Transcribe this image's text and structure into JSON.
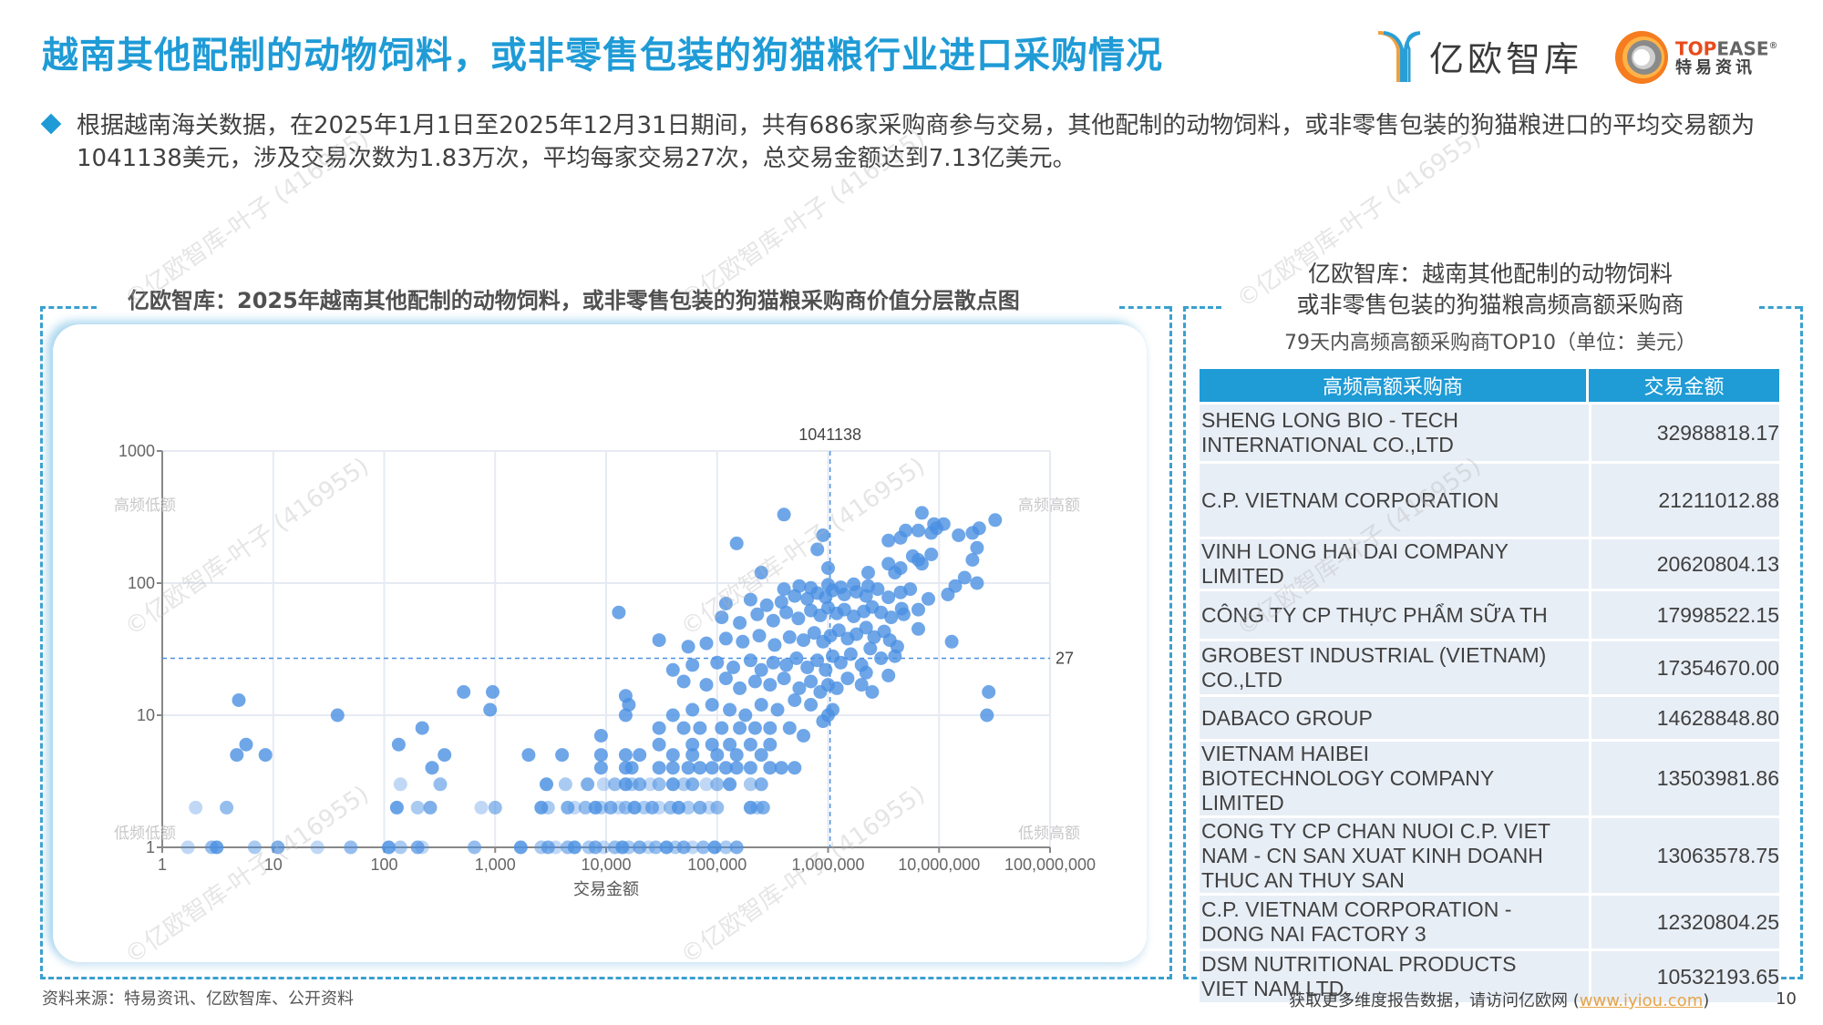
{
  "header": {
    "title": "越南其他配制的动物饲料，或非零售包装的狗猫粮行业进口采购情况",
    "logo_yiou": "亿欧智库",
    "logo_topease_brand_a": "TOP",
    "logo_topease_brand_b": "EASE",
    "logo_topease_reg": "®",
    "logo_topease_sub": "特易资讯"
  },
  "summary": {
    "text": "根据越南海关数据，在2025年1月1日至2025年12月31日期间，共有686家采购商参与交易，其他配制的动物饲料，或非零售包装的狗猫粮进口的平均交易额为1041138美元，涉及交易次数为1.83万次，平均每家交易27次，总交易金额达到7.13亿美元。"
  },
  "left_panel": {
    "title": "亿欧智库：2025年越南其他配制的动物饲料，或非零售包装的狗猫粮采购商价值分层散点图"
  },
  "right_panel": {
    "title_line1": "亿欧智库：越南其他配制的动物饲料",
    "title_line2": "或非零售包装的狗猫粮高频高额采购商",
    "subtitle": "79天内高频高额采购商TOP10（单位：美元）",
    "columns": [
      "高频高额采购商",
      "交易金额"
    ],
    "rows": [
      {
        "name": "SHENG LONG BIO - TECH INTERNATIONAL CO.,LTD",
        "amount": "32988818.17"
      },
      {
        "name": "C.P. VIETNAM CORPORATION",
        "amount": "21211012.88"
      },
      {
        "name": "VINH LONG HAI DAI COMPANY LIMITED",
        "amount": "20620804.13"
      },
      {
        "name": "CÔNG TY CP THỰC PHẨM SỮA TH",
        "amount": "17998522.15"
      },
      {
        "name": "GROBEST INDUSTRIAL (VIETNAM) CO.,LTD",
        "amount": "17354670.00"
      },
      {
        "name": "DABACO GROUP",
        "amount": "14628848.80"
      },
      {
        "name": "VIETNAM HAIBEI BIOTECHNOLOGY COMPANY LIMITED",
        "amount": "13503981.86"
      },
      {
        "name": "CONG TY CP CHAN NUOI C.P. VIET NAM - CN SAN XUAT KINH DOANH THUC AN THUY SAN",
        "amount": "13063578.75"
      },
      {
        "name": "C.P. VIETNAM CORPORATION - DONG NAI FACTORY 3",
        "amount": "12320804.25"
      },
      {
        "name": "DSM NUTRITIONAL PRODUCTS VIET NAM LTD.",
        "amount": "10532193.65"
      }
    ]
  },
  "footer": {
    "source": "资料来源：特易资讯、亿欧智库、公开资料",
    "more_prefix": "获取更多维度报告数据，请访问亿欧网 (",
    "more_link": "www.iyiou.com",
    "more_suffix": ")",
    "page_number": "10"
  },
  "watermark": "©亿欧智库-叶子 (416955)",
  "colors": {
    "accent": "#1f9bd6",
    "point": "#4a90e2",
    "table_header": "#1f9bd6",
    "table_row": "#e8eef6"
  },
  "chart_data": {
    "type": "scatter",
    "title": "亿欧智库：2025年越南其他配制的动物饲料，或非零售包装的狗猫粮采购商价值分层散点图",
    "xlabel": "交易金额",
    "ylabel": "",
    "x_scale": "log",
    "y_scale": "log",
    "xlim": [
      1,
      100000000
    ],
    "ylim": [
      1,
      1000
    ],
    "x_ticks": [
      "1",
      "10",
      "100",
      "1,000",
      "10,000",
      "100,000",
      "1,000,000",
      "10,000,000",
      "100,000,000"
    ],
    "y_ticks": [
      "1",
      "10",
      "100",
      "1000"
    ],
    "reference_lines": {
      "x_mean": 1041138,
      "x_label": "1041138",
      "y_mean": 27,
      "y_label": "27"
    },
    "quadrant_labels": {
      "top_left": "高频低额",
      "top_right": "高频高额",
      "bottom_left": "低频低额",
      "bottom_right": "低频高额"
    },
    "grid": true,
    "points": [
      [
        1.7,
        1
      ],
      [
        2.8,
        1
      ],
      [
        3.1,
        1
      ],
      [
        6.8,
        1
      ],
      [
        11,
        1
      ],
      [
        25,
        1
      ],
      [
        50,
        1
      ],
      [
        110,
        1
      ],
      [
        140,
        1
      ],
      [
        200,
        1
      ],
      [
        220,
        1
      ],
      [
        650,
        1
      ],
      [
        1700,
        1
      ],
      [
        2600,
        1
      ],
      [
        3000,
        1
      ],
      [
        3500,
        1
      ],
      [
        4500,
        1
      ],
      [
        5200,
        1
      ],
      [
        7000,
        1
      ],
      [
        8000,
        1
      ],
      [
        9500,
        1
      ],
      [
        12000,
        1
      ],
      [
        14000,
        1
      ],
      [
        16000,
        1
      ],
      [
        20000,
        1
      ],
      [
        24000,
        1
      ],
      [
        28000,
        1
      ],
      [
        35000,
        1
      ],
      [
        42000,
        1
      ],
      [
        50000,
        1
      ],
      [
        60000,
        1
      ],
      [
        75000,
        1
      ],
      [
        95000,
        1
      ],
      [
        120000,
        1
      ],
      [
        150000,
        1
      ],
      [
        2,
        2
      ],
      [
        3.8,
        2
      ],
      [
        130,
        2
      ],
      [
        200,
        2
      ],
      [
        260,
        2
      ],
      [
        750,
        2
      ],
      [
        1000,
        2
      ],
      [
        2600,
        2
      ],
      [
        3000,
        2
      ],
      [
        4500,
        2
      ],
      [
        5200,
        2
      ],
      [
        6500,
        2
      ],
      [
        8000,
        2
      ],
      [
        9000,
        2
      ],
      [
        11000,
        2
      ],
      [
        13000,
        2
      ],
      [
        15000,
        2
      ],
      [
        18000,
        2
      ],
      [
        22000,
        2
      ],
      [
        26000,
        2
      ],
      [
        30000,
        2
      ],
      [
        38000,
        2
      ],
      [
        45000,
        2
      ],
      [
        55000,
        2
      ],
      [
        70000,
        2
      ],
      [
        85000,
        2
      ],
      [
        100000,
        2
      ],
      [
        200000,
        2
      ],
      [
        230000,
        2
      ],
      [
        260000,
        2
      ],
      [
        140,
        3
      ],
      [
        320,
        3
      ],
      [
        2900,
        3
      ],
      [
        4300,
        3
      ],
      [
        6800,
        3
      ],
      [
        9500,
        3
      ],
      [
        12000,
        3
      ],
      [
        15000,
        3
      ],
      [
        17000,
        3
      ],
      [
        20000,
        3
      ],
      [
        25000,
        3
      ],
      [
        30000,
        3
      ],
      [
        40000,
        3
      ],
      [
        50000,
        3
      ],
      [
        60000,
        3
      ],
      [
        80000,
        3
      ],
      [
        100000,
        3
      ],
      [
        130000,
        3
      ],
      [
        200000,
        3
      ],
      [
        250000,
        3
      ],
      [
        270,
        4
      ],
      [
        9000,
        4
      ],
      [
        15000,
        4
      ],
      [
        17000,
        4
      ],
      [
        30000,
        4
      ],
      [
        40000,
        4
      ],
      [
        55000,
        4
      ],
      [
        70000,
        4
      ],
      [
        90000,
        4
      ],
      [
        120000,
        4
      ],
      [
        150000,
        4
      ],
      [
        200000,
        4
      ],
      [
        300000,
        4
      ],
      [
        380000,
        4
      ],
      [
        500000,
        4
      ],
      [
        4.7,
        5
      ],
      [
        8.5,
        5
      ],
      [
        350,
        5
      ],
      [
        2000,
        5
      ],
      [
        4000,
        5
      ],
      [
        9000,
        5
      ],
      [
        15000,
        5
      ],
      [
        20000,
        5
      ],
      [
        40000,
        5
      ],
      [
        60000,
        5
      ],
      [
        100000,
        5
      ],
      [
        150000,
        5
      ],
      [
        250000,
        5
      ],
      [
        5.7,
        6
      ],
      [
        135,
        6
      ],
      [
        30000,
        6
      ],
      [
        60000,
        6
      ],
      [
        90000,
        6
      ],
      [
        130000,
        6
      ],
      [
        200000,
        6
      ],
      [
        300000,
        6
      ],
      [
        220,
        8
      ],
      [
        9000,
        7
      ],
      [
        30000,
        8
      ],
      [
        50000,
        8
      ],
      [
        70000,
        8
      ],
      [
        110000,
        8
      ],
      [
        160000,
        8
      ],
      [
        220000,
        8
      ],
      [
        300000,
        8
      ],
      [
        450000,
        8
      ],
      [
        600000,
        7
      ],
      [
        900000,
        9
      ],
      [
        4.9,
        13
      ],
      [
        38,
        10
      ],
      [
        520,
        15
      ],
      [
        900,
        11
      ],
      [
        950,
        15
      ],
      [
        15000,
        10
      ],
      [
        15000,
        14
      ],
      [
        16000,
        12
      ],
      [
        40000,
        10
      ],
      [
        60000,
        11
      ],
      [
        90000,
        12
      ],
      [
        130000,
        11
      ],
      [
        180000,
        10
      ],
      [
        250000,
        12
      ],
      [
        350000,
        11
      ],
      [
        500000,
        13
      ],
      [
        700000,
        12
      ],
      [
        1000000,
        10
      ],
      [
        1100000,
        11
      ],
      [
        27000000,
        10
      ],
      [
        28000000,
        15
      ],
      [
        50000,
        18
      ],
      [
        80000,
        17
      ],
      [
        120000,
        19
      ],
      [
        160000,
        16
      ],
      [
        220000,
        18
      ],
      [
        300000,
        17
      ],
      [
        400000,
        19
      ],
      [
        550000,
        16
      ],
      [
        700000,
        18
      ],
      [
        850000,
        15
      ],
      [
        1000000,
        17
      ],
      [
        1200000,
        16
      ],
      [
        1500000,
        19
      ],
      [
        2000000,
        17
      ],
      [
        3500000,
        20
      ],
      [
        2500000,
        15
      ],
      [
        40000,
        22
      ],
      [
        60000,
        24
      ],
      [
        100000,
        25
      ],
      [
        140000,
        23
      ],
      [
        200000,
        26
      ],
      [
        250000,
        22
      ],
      [
        320000,
        25
      ],
      [
        420000,
        24
      ],
      [
        520000,
        27
      ],
      [
        650000,
        23
      ],
      [
        800000,
        26
      ],
      [
        950000,
        22
      ],
      [
        1100000,
        28
      ],
      [
        1300000,
        25
      ],
      [
        1600000,
        29
      ],
      [
        2000000,
        24
      ],
      [
        2400000,
        32
      ],
      [
        3000000,
        27
      ],
      [
        4000000,
        28
      ],
      [
        4200000,
        33
      ],
      [
        2200000,
        21
      ],
      [
        30000,
        37
      ],
      [
        55000,
        33
      ],
      [
        80000,
        35
      ],
      [
        120000,
        38
      ],
      [
        170000,
        36
      ],
      [
        240000,
        40
      ],
      [
        330000,
        34
      ],
      [
        450000,
        39
      ],
      [
        600000,
        37
      ],
      [
        750000,
        42
      ],
      [
        900000,
        36
      ],
      [
        1050000,
        40
      ],
      [
        1250000,
        44
      ],
      [
        1500000,
        38
      ],
      [
        1800000,
        41
      ],
      [
        2200000,
        46
      ],
      [
        2600000,
        39
      ],
      [
        3200000,
        43
      ],
      [
        3600000,
        37
      ],
      [
        6500000,
        45
      ],
      [
        13000000,
        36
      ],
      [
        110000,
        55
      ],
      [
        160000,
        50
      ],
      [
        230000,
        58
      ],
      [
        320000,
        52
      ],
      [
        420000,
        60
      ],
      [
        540000,
        54
      ],
      [
        700000,
        62
      ],
      [
        850000,
        57
      ],
      [
        1000000,
        65
      ],
      [
        1200000,
        59
      ],
      [
        1400000,
        63
      ],
      [
        1700000,
        56
      ],
      [
        2100000,
        61
      ],
      [
        2500000,
        66
      ],
      [
        3000000,
        60
      ],
      [
        3700000,
        55
      ],
      [
        4800000,
        58
      ],
      [
        4600000,
        64
      ],
      [
        6500000,
        63
      ],
      [
        13000,
        60
      ],
      [
        120000,
        70
      ],
      [
        200000,
        75
      ],
      [
        280000,
        68
      ],
      [
        380000,
        72
      ],
      [
        500000,
        80
      ],
      [
        650000,
        76
      ],
      [
        800000,
        84
      ],
      [
        950000,
        78
      ],
      [
        1100000,
        88
      ],
      [
        1400000,
        82
      ],
      [
        1800000,
        86
      ],
      [
        2200000,
        80
      ],
      [
        2800000,
        90
      ],
      [
        3500000,
        78
      ],
      [
        4500000,
        85
      ],
      [
        5500000,
        90
      ],
      [
        8000000,
        76
      ],
      [
        12000000,
        82
      ],
      [
        400000,
        90
      ],
      [
        550000,
        95
      ],
      [
        700000,
        92
      ],
      [
        1000000,
        97
      ],
      [
        1300000,
        93
      ],
      [
        1700000,
        98
      ],
      [
        2300000,
        95
      ],
      [
        17000000,
        110
      ],
      [
        22000000,
        100
      ],
      [
        14000000,
        95
      ],
      [
        250000,
        120
      ],
      [
        1000000,
        130
      ],
      [
        2300000,
        120
      ],
      [
        3500000,
        140
      ],
      [
        4000000,
        120
      ],
      [
        4500000,
        130
      ],
      [
        5800000,
        160
      ],
      [
        6500000,
        150
      ],
      [
        7000000,
        140
      ],
      [
        8500000,
        165
      ],
      [
        20000000,
        150
      ],
      [
        22000000,
        185
      ],
      [
        150000,
        200
      ],
      [
        800000,
        180
      ],
      [
        3500000,
        210
      ],
      [
        4500000,
        220
      ],
      [
        6500000,
        250
      ],
      [
        8500000,
        240
      ],
      [
        9000000,
        280
      ],
      [
        9500000,
        260
      ],
      [
        11000000,
        280
      ],
      [
        15000000,
        230
      ],
      [
        20000000,
        240
      ],
      [
        23000000,
        260
      ],
      [
        32000000,
        300
      ],
      [
        900000,
        230
      ],
      [
        5000000,
        250
      ],
      [
        400000,
        330
      ],
      [
        7000000,
        340
      ]
    ]
  }
}
